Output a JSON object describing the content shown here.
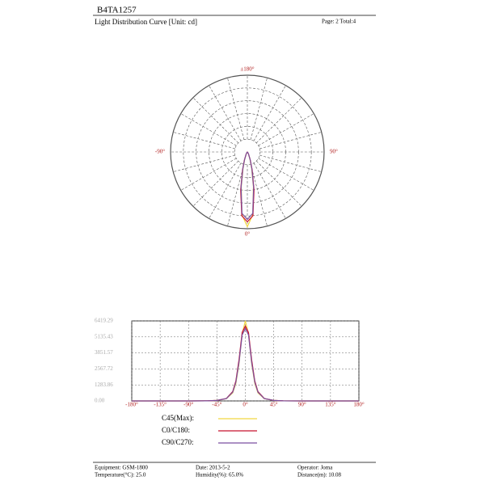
{
  "header": {
    "title": "B4TA1257",
    "subtitle": "Light Distribution Curve [Unit: cd]",
    "page": "Page: 2  Total:4"
  },
  "chart_data": [
    {
      "type": "polar",
      "rlim": [
        0,
        6600
      ],
      "thetaticks": [
        {
          "value": 180,
          "label": "±180°"
        },
        {
          "value": -90,
          "label": "-90°"
        },
        {
          "value": 90,
          "label": "90°"
        },
        {
          "value": 0,
          "label": "0°"
        }
      ]
    },
    {
      "type": "line",
      "x": [
        -180,
        -90,
        -60,
        -45,
        -30,
        -20,
        -15,
        -10,
        -5,
        0,
        5,
        10,
        15,
        20,
        30,
        45,
        60,
        90,
        180
      ],
      "series": [
        {
          "name": "C45(Max):",
          "color": "#f2d640",
          "values": [
            0,
            0,
            10,
            40,
            180,
            650,
            1400,
            3000,
            5400,
            6419.29,
            5400,
            3000,
            1400,
            650,
            180,
            40,
            10,
            0,
            0
          ]
        },
        {
          "name": "C0/C180:",
          "color": "#c8102e",
          "values": [
            0,
            0,
            10,
            40,
            200,
            750,
            1600,
            3300,
            5500,
            6000,
            5500,
            3300,
            1600,
            750,
            200,
            40,
            10,
            0,
            0
          ]
        },
        {
          "name": "C90/C270:",
          "color": "#7a4fa0",
          "values": [
            0,
            0,
            10,
            40,
            190,
            700,
            1500,
            3100,
            5300,
            5800,
            5300,
            3100,
            1500,
            700,
            190,
            40,
            10,
            0,
            0
          ]
        }
      ],
      "xlim": [
        -180,
        180
      ],
      "xticks": [
        {
          "value": -180,
          "label": "-180°"
        },
        {
          "value": -135,
          "label": "-135°"
        },
        {
          "value": -90,
          "label": "-90°"
        },
        {
          "value": -45,
          "label": "-45°"
        },
        {
          "value": 0,
          "label": "0°"
        },
        {
          "value": 45,
          "label": "45°"
        },
        {
          "value": 90,
          "label": "90°"
        },
        {
          "value": 135,
          "label": "135°"
        },
        {
          "value": 180,
          "label": "180°"
        }
      ],
      "ylim": [
        0,
        6419.29
      ],
      "yticks": [
        {
          "value": 0,
          "label": "0.00"
        },
        1283.86,
        2567.72,
        3851.57,
        5135.43,
        6419.29
      ],
      "grid": true
    }
  ],
  "footer": {
    "items": [
      "Equipment: GSM-1800",
      "Temperature(°C): 25.0",
      "Date: 2013-5-2",
      "Humidity(%): 65.0%",
      "Operator: Joma",
      "Distance(m): 10.08"
    ]
  }
}
